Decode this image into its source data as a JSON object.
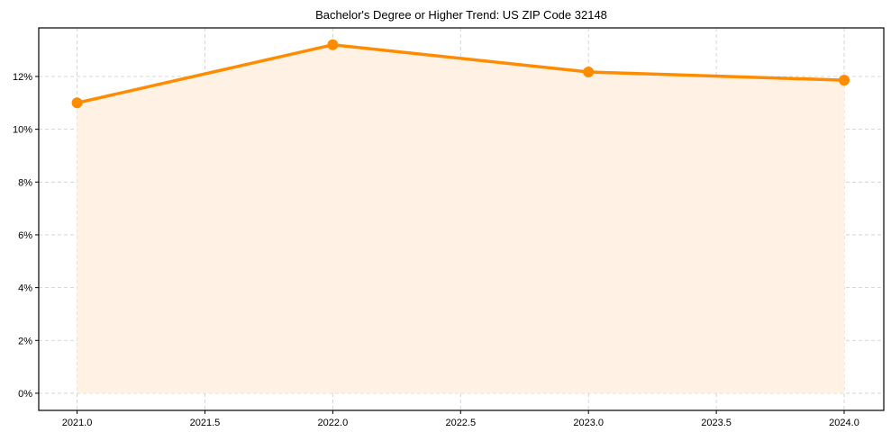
{
  "chart_data": {
    "type": "line",
    "title": "Bachelor's Degree or Higher Trend: US ZIP Code 32148",
    "xlabel": "",
    "ylabel": "",
    "x": [
      2021.0,
      2022.0,
      2023.0,
      2024.0
    ],
    "series": [
      {
        "name": "Bachelor's Degree or Higher",
        "values": [
          11.0,
          13.2,
          12.17,
          11.86
        ],
        "unit": "%",
        "color": "#ff8c00",
        "fill": true,
        "fill_color": "#fff1e3",
        "marker": "circle"
      }
    ],
    "xlim": [
      2020.85,
      2024.155
    ],
    "ylim": [
      -0.65,
      13.84
    ],
    "xticks": [
      2021.0,
      2021.5,
      2022.0,
      2022.5,
      2023.0,
      2023.5,
      2024.0
    ],
    "xtick_labels": [
      "2021.0",
      "2021.5",
      "2022.0",
      "2022.5",
      "2023.0",
      "2023.5",
      "2024.0"
    ],
    "yticks": [
      0,
      2,
      4,
      6,
      8,
      10,
      12
    ],
    "ytick_labels": [
      "0%",
      "2%",
      "4%",
      "6%",
      "8%",
      "10%",
      "12%"
    ],
    "grid": true,
    "grid_style": "dashed",
    "legend": null
  }
}
